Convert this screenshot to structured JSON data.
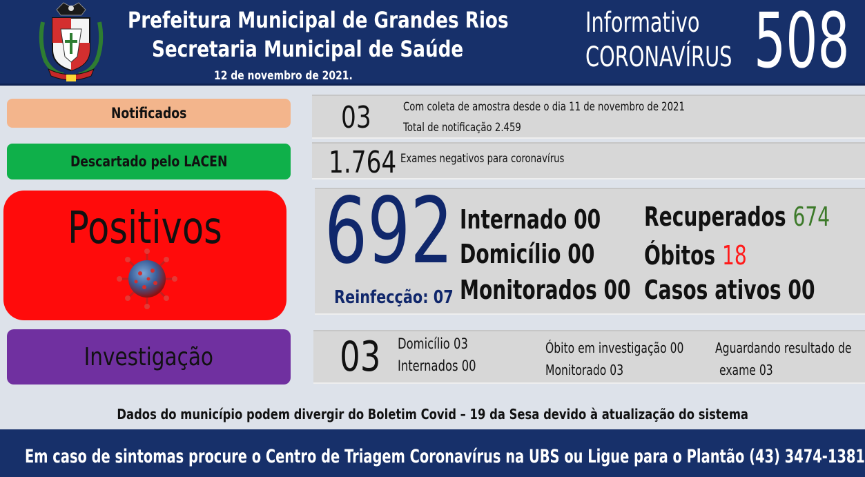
{
  "header": {
    "title_line1": "Prefeitura Municipal de Grandes Rios",
    "title_line2": "Secretaria Municipal de Saúde",
    "date": "12 de novembro  de 2021.",
    "info_line1": "Informativo",
    "info_line2": "CORONAVÍRUS",
    "bulletin_number": "508"
  },
  "notificados": {
    "label": "Notificados",
    "value": "03",
    "line1": "Com coleta de amostra desde o dia 11 de novembro de 2021",
    "line2": "Total de notificação  2.459"
  },
  "descartado": {
    "label": "Descartado  pelo LACEN",
    "value": "1.764",
    "text": "Exames negativos  para coronavírus"
  },
  "positivos": {
    "label": "Positivos",
    "value": "692",
    "reinfeccao": "Reinfecção:  07",
    "internado": "Internado 00",
    "domicilio": "Domicílio 00",
    "monitorados": "Monitorados 00",
    "recuperados_label": "Recuperados",
    "recuperados_value": "674",
    "obitos_label": "Óbitos",
    "obitos_value": "18",
    "casos_ativos": "Casos ativos 00"
  },
  "investigacao": {
    "label": "Investigação",
    "value": "03",
    "domicilio": "Domicílio 03",
    "internados": "Internados 00",
    "obito": "Óbito  em investigação  00",
    "monitorado": "Monitorado 03",
    "aguardando_line1": "Aguardando resultado de",
    "aguardando_line2": "exame 03"
  },
  "footer_note": "Dados do município podem  divergir  do Boletim  Covid – 19 da Sesa devido à atualização  do sistema",
  "bottom_bar": "Em caso de sintomas  procure  o Centro de Triagem  Coronavírus  na UBS ou Ligue para o Plantão  (43) 3474-1381",
  "colors": {
    "navy": "#17306a",
    "notificados": "#f3b58c",
    "descartado": "#0fb04a",
    "positivos": "#ff0b0b",
    "investigacao": "#7030a0",
    "recuperados": "#3d7a2a",
    "obitos": "#ff1a1a",
    "big_number": "#10276b"
  }
}
